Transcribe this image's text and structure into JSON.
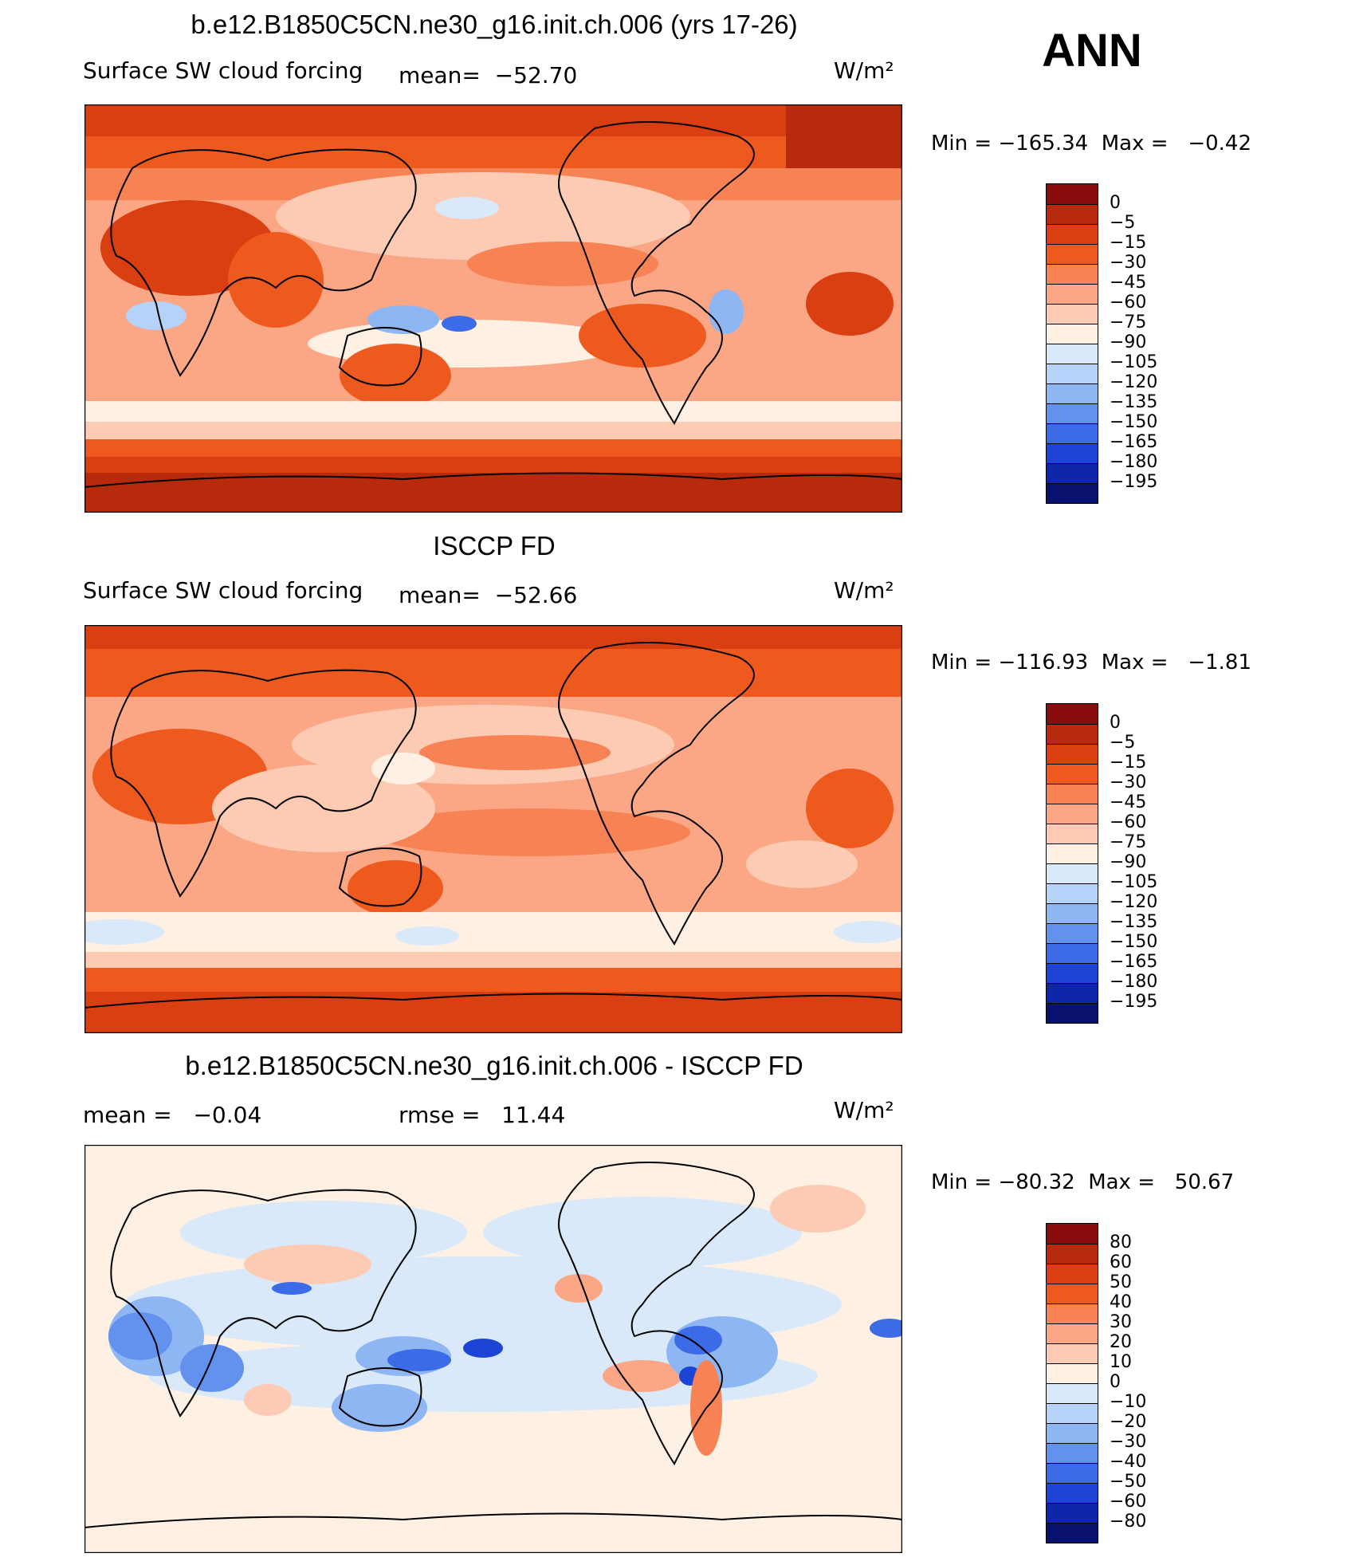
{
  "header": {
    "season": "ANN"
  },
  "panels": [
    {
      "title": "b.e12.B1850C5CN.ne30_g16.init.ch.006 (yrs 17-26)",
      "left_label": "Surface SW cloud forcing",
      "mid_label": "mean=  −52.70",
      "units": "W/m²",
      "minmax": "Min = −165.34  Max =   −0.42",
      "colorbar": {
        "labels": [
          "0",
          "−5",
          "−15",
          "−30",
          "−45",
          "−60",
          "−75",
          "−90",
          "−105",
          "−120",
          "−135",
          "−150",
          "−165",
          "−180",
          "−195"
        ],
        "colors": [
          "#8a0d0d",
          "#b82a0c",
          "#d93f10",
          "#ee5a1e",
          "#f78254",
          "#fba786",
          "#fdcbb3",
          "#fef0e3",
          "#d9e9fa",
          "#b5d2f8",
          "#8db6f3",
          "#6391ee",
          "#3c6be8",
          "#1c45d5",
          "#0e27a8",
          "#09126e"
        ]
      }
    },
    {
      "title": "ISCCP FD",
      "left_label": "Surface SW cloud forcing",
      "mid_label": "mean=  −52.66",
      "units": "W/m²",
      "minmax": "Min = −116.93  Max =   −1.81",
      "colorbar": {
        "labels": [
          "0",
          "−5",
          "−15",
          "−30",
          "−45",
          "−60",
          "−75",
          "−90",
          "−105",
          "−120",
          "−135",
          "−150",
          "−165",
          "−180",
          "−195"
        ],
        "colors": [
          "#8a0d0d",
          "#b82a0c",
          "#d93f10",
          "#ee5a1e",
          "#f78254",
          "#fba786",
          "#fdcbb3",
          "#fef0e3",
          "#d9e9fa",
          "#b5d2f8",
          "#8db6f3",
          "#6391ee",
          "#3c6be8",
          "#1c45d5",
          "#0e27a8",
          "#09126e"
        ]
      }
    },
    {
      "title": "b.e12.B1850C5CN.ne30_g16.init.ch.006 - ISCCP FD",
      "left_label": "mean =   −0.04",
      "mid_label": "rmse =   11.44",
      "units": "W/m²",
      "minmax": "Min = −80.32  Max =   50.67",
      "colorbar": {
        "labels": [
          "80",
          "60",
          "50",
          "40",
          "30",
          "20",
          "10",
          "0",
          "−10",
          "−20",
          "−30",
          "−40",
          "−50",
          "−60",
          "−80"
        ],
        "colors": [
          "#8a0d0d",
          "#b82a0c",
          "#d93f10",
          "#ee5a1e",
          "#f78254",
          "#fba786",
          "#fdcbb3",
          "#fef0e3",
          "#d9e9fa",
          "#b5d2f8",
          "#8db6f3",
          "#6391ee",
          "#3c6be8",
          "#1c45d5",
          "#0e27a8",
          "#09126e"
        ]
      }
    }
  ]
}
